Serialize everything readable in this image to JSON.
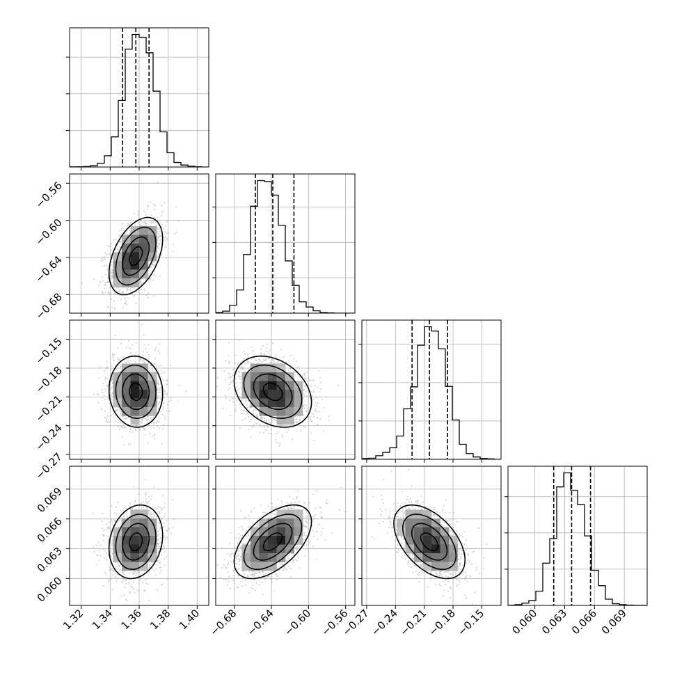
{
  "chart_data": {
    "type": "corner",
    "grid": true,
    "parameters": [
      {
        "range": [
          1.312,
          1.408
        ],
        "ticks": [
          "1.32",
          "1.34",
          "1.36",
          "1.38",
          "1.40"
        ],
        "tick_values": [
          1.32,
          1.34,
          1.36,
          1.38,
          1.4
        ],
        "quantiles": [
          1.3485,
          1.3577,
          1.3668
        ],
        "hist_counts": [
          1,
          2,
          4,
          11,
          31,
          92,
          247,
          545,
          966,
          1086,
          1063,
          936,
          621,
          288,
          117,
          37,
          16,
          7,
          2,
          0
        ],
        "hist_max_tick_counts": [
          300,
          600,
          900
        ]
      },
      {
        "range": [
          -0.7,
          -0.55
        ],
        "ticks": [
          "−0.68",
          "−0.64",
          "−0.60",
          "−0.56"
        ],
        "tick_values": [
          -0.68,
          -0.64,
          -0.6,
          -0.56
        ],
        "quantiles": [
          -0.6573,
          -0.6385,
          -0.6157
        ],
        "hist_counts": [
          5,
          17,
          67,
          196,
          497,
          907,
          1124,
          1116,
          1001,
          745,
          443,
          235,
          96,
          52,
          20,
          5,
          2,
          0,
          0,
          0
        ],
        "hist_max_tick_counts": [
          300,
          600,
          900
        ]
      },
      {
        "range": [
          -0.275,
          -0.13
        ],
        "ticks": [
          "−0.27",
          "−0.24",
          "−0.21",
          "−0.18",
          "−0.15"
        ],
        "tick_values": [
          -0.27,
          -0.24,
          -0.21,
          -0.18,
          -0.15
        ],
        "quantiles": [
          -0.2227,
          -0.2046,
          -0.1857
        ],
        "hist_counts": [
          6,
          9,
          28,
          54,
          90,
          182,
          395,
          567,
          893,
          1038,
          1004,
          865,
          571,
          308,
          117,
          45,
          18,
          7,
          3,
          0
        ],
        "hist_max_tick_counts": [
          300,
          600,
          900
        ]
      },
      {
        "range": [
          0.0573,
          0.0713
        ],
        "ticks": [
          "0.060",
          "0.063",
          "0.066",
          "0.069"
        ],
        "tick_values": [
          0.06,
          0.063,
          0.066,
          0.069
        ],
        "quantiles": [
          0.0619,
          0.0637,
          0.0656
        ],
        "hist_counts": [
          2,
          6,
          19,
          40,
          118,
          350,
          553,
          981,
          1097,
          953,
          834,
          575,
          291,
          163,
          52,
          14,
          6,
          3,
          1,
          1
        ],
        "hist_max_tick_counts": [
          300,
          600,
          900
        ]
      }
    ],
    "joint": [
      {
        "row": 1,
        "col": 0,
        "mean": [
          1.3577,
          -0.6385
        ],
        "sd": [
          0.0092,
          0.0208
        ],
        "rho": 0.45
      },
      {
        "row": 2,
        "col": 0,
        "mean": [
          1.3577,
          -0.2046
        ],
        "sd": [
          0.0092,
          0.0185
        ],
        "rho": -0.05
      },
      {
        "row": 2,
        "col": 1,
        "mean": [
          -0.6385,
          -0.2046
        ],
        "sd": [
          0.0208,
          0.0185
        ],
        "rho": -0.3
      },
      {
        "row": 3,
        "col": 0,
        "mean": [
          1.3577,
          0.0637
        ],
        "sd": [
          0.0092,
          0.00185
        ],
        "rho": 0.18
      },
      {
        "row": 3,
        "col": 1,
        "mean": [
          -0.6385,
          0.0637
        ],
        "sd": [
          0.0208,
          0.00185
        ],
        "rho": 0.55
      },
      {
        "row": 3,
        "col": 2,
        "mean": [
          -0.2046,
          0.0637
        ],
        "sd": [
          0.0185,
          0.00185
        ],
        "rho": -0.5
      }
    ],
    "contour_levels_sigma": [
      0.5,
      1.0,
      1.5,
      2.0
    ],
    "colors": {
      "line": "#000000",
      "grid": "#b0b0b0",
      "scatter": "#b3b3b3",
      "axes": "#000000"
    }
  }
}
